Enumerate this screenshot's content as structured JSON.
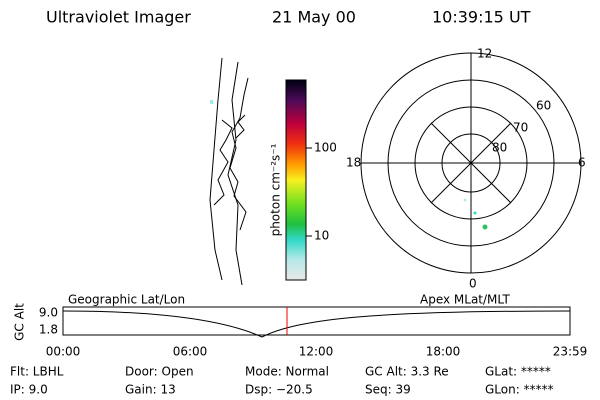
{
  "header": {
    "instrument": "Ultraviolet Imager",
    "date": "21 May 00",
    "time": "10:39:15 UT"
  },
  "colorbar": {
    "label": "photon cm⁻²s⁻¹",
    "ticks": [
      "100",
      "10"
    ]
  },
  "polar": {
    "mlt_labels": [
      "12",
      "18",
      "6",
      "0"
    ],
    "lat_labels": [
      "60",
      "70",
      "80"
    ]
  },
  "timeline": {
    "ylabel": "GC Alt",
    "yticks": [
      "9.0",
      "1.8"
    ],
    "left_label": "Geographic Lat/Lon",
    "right_label": "Apex MLat/MLT",
    "xticks": [
      "00:00",
      "06:00",
      "12:00",
      "18:00",
      "23:59"
    ]
  },
  "footer": {
    "rows": [
      [
        "Flt: LBHL",
        "Door: Open",
        "Mode: Normal",
        "GC Alt: 3.3 Re",
        "GLat: *****"
      ],
      [
        "IP: 9.0",
        "Gain: 13",
        "Dsp: −20.5",
        "Seq: 39",
        "GLon: *****"
      ]
    ]
  }
}
